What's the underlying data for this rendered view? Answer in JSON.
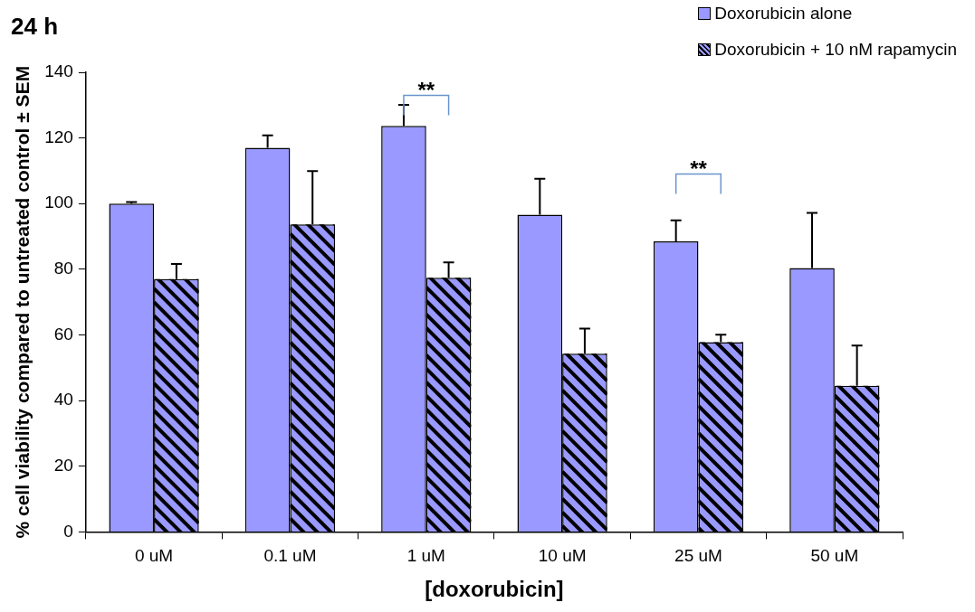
{
  "chart_data": {
    "type": "bar",
    "title": "24 h",
    "xlabel": "[doxorubicin]",
    "ylabel": "% cell viability compared to untreated control ± SEM",
    "categories": [
      "0 uM",
      "0.1 uM",
      "1 uM",
      "10 uM",
      "25 uM",
      "50 uM"
    ],
    "series": [
      {
        "name": "Doxorubicin alone",
        "color": "#9999ff",
        "values": [
          100,
          117,
          123.7,
          96.6,
          88.5,
          80.4
        ],
        "errors": [
          [
            100,
            100.5
          ],
          [
            117,
            120.8
          ],
          [
            123.7,
            130.1
          ],
          [
            96.6,
            107.6
          ],
          [
            88.5,
            94.9
          ],
          [
            80.4,
            97.2
          ]
        ]
      },
      {
        "name": "Doxorubicin + 10 nM rapamycin",
        "color": "#9999ff",
        "values": [
          77,
          93.7,
          77.4,
          54.3,
          57.8,
          44.5
        ],
        "errors": [
          [
            77,
            81.6
          ],
          [
            93.7,
            109.9
          ],
          [
            77.4,
            82.1
          ],
          [
            54.3,
            61.9
          ],
          [
            57.8,
            60.1
          ],
          [
            44.5,
            56.8
          ]
        ]
      }
    ],
    "ylim": [
      0,
      140
    ],
    "yticks": [
      0,
      20,
      40,
      60,
      80,
      100,
      120,
      140
    ],
    "grid": false,
    "legend": "top right",
    "annotations": [
      "**",
      "**"
    ]
  }
}
